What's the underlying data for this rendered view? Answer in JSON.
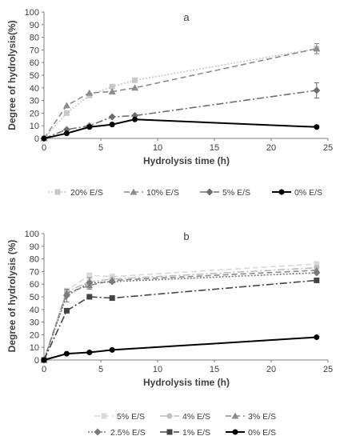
{
  "chart_data": [
    {
      "type": "line",
      "title": "a",
      "xlabel": "Hydrolysis time (h)",
      "ylabel": "Degree of hydrolysis(%)",
      "xlim": [
        0,
        25
      ],
      "ylim": [
        0,
        100
      ],
      "xticks": [
        0,
        5,
        10,
        15,
        20,
        25
      ],
      "yticks": [
        0,
        10,
        20,
        30,
        40,
        50,
        60,
        70,
        80,
        90,
        100
      ],
      "grid": false,
      "legend_position": "bottom",
      "series": [
        {
          "name": "20% E/S",
          "color": "#c8c8c8",
          "dash": "dotted",
          "marker": "square",
          "x": [
            0,
            2,
            4,
            6,
            8,
            24
          ],
          "y": [
            0,
            20,
            34,
            41,
            46,
            71
          ],
          "err": [
            0,
            0,
            0,
            0,
            0,
            4
          ]
        },
        {
          "name": "10% E/S",
          "color": "#8c8c8c",
          "dash": "dashed",
          "marker": "triangle",
          "x": [
            0,
            2,
            4,
            6,
            8,
            24
          ],
          "y": [
            0,
            26,
            36,
            37,
            40,
            71
          ],
          "err": [
            0,
            0,
            0,
            0,
            0,
            4
          ]
        },
        {
          "name": "5% E/S",
          "color": "#6e6e6e",
          "dash": "dashdot",
          "marker": "diamond",
          "x": [
            0,
            2,
            4,
            6,
            8,
            24
          ],
          "y": [
            0,
            7,
            10,
            17,
            18,
            38
          ],
          "err": [
            0,
            0,
            0,
            0,
            0,
            6
          ]
        },
        {
          "name": "0% E/S",
          "color": "#000000",
          "dash": "solid",
          "marker": "circle",
          "x": [
            0,
            2,
            4,
            6,
            8,
            24
          ],
          "y": [
            0,
            4,
            9,
            11,
            15,
            9
          ],
          "err": [
            0,
            0,
            0,
            0,
            0,
            0
          ]
        }
      ]
    },
    {
      "type": "line",
      "title": "b",
      "xlabel": "Hydrolysis time (h)",
      "ylabel": "Degree of hydrolysis (%)",
      "xlim": [
        0,
        25
      ],
      "ylim": [
        0,
        100
      ],
      "xticks": [
        0,
        5,
        10,
        15,
        20,
        25
      ],
      "yticks": [
        0,
        10,
        20,
        30,
        40,
        50,
        60,
        70,
        80,
        90,
        100
      ],
      "grid": false,
      "legend_position": "bottom",
      "series": [
        {
          "name": "5% E/S",
          "color": "#d9d9d9",
          "dash": "dashed",
          "marker": "square",
          "x": [
            0,
            2,
            4,
            6,
            24
          ],
          "y": [
            0,
            55,
            67,
            66,
            76
          ],
          "err": [
            0,
            0,
            0,
            0,
            0
          ]
        },
        {
          "name": "4% E/S",
          "color": "#bfbfbf",
          "dash": "dashdot",
          "marker": "circle",
          "x": [
            0,
            2,
            4,
            6,
            24
          ],
          "y": [
            0,
            54,
            62,
            64,
            73
          ],
          "err": [
            0,
            0,
            0,
            0,
            0
          ]
        },
        {
          "name": "3% E/S",
          "color": "#8c8c8c",
          "dash": "dashed",
          "marker": "triangle",
          "x": [
            0,
            2,
            4,
            6,
            24
          ],
          "y": [
            0,
            53,
            59,
            63,
            71
          ],
          "err": [
            0,
            3,
            3,
            0,
            0
          ]
        },
        {
          "name": "2.5% E/S",
          "color": "#7a7a7a",
          "dash": "dotted",
          "marker": "diamond",
          "x": [
            0,
            2,
            4,
            6,
            24
          ],
          "y": [
            0,
            51,
            61,
            62,
            69
          ],
          "err": [
            0,
            5,
            4,
            0,
            0
          ]
        },
        {
          "name": "1% E/S",
          "color": "#444444",
          "dash": "dashdot",
          "marker": "square",
          "x": [
            0,
            2,
            4,
            6,
            24
          ],
          "y": [
            0,
            39,
            50,
            49,
            63
          ],
          "err": [
            0,
            0,
            0,
            0,
            0
          ]
        },
        {
          "name": "0% E/S",
          "color": "#000000",
          "dash": "solid",
          "marker": "circle",
          "x": [
            0,
            2,
            4,
            6,
            24
          ],
          "y": [
            0,
            5,
            6,
            8,
            18
          ],
          "err": [
            0,
            0,
            0,
            0,
            0
          ]
        }
      ]
    }
  ]
}
